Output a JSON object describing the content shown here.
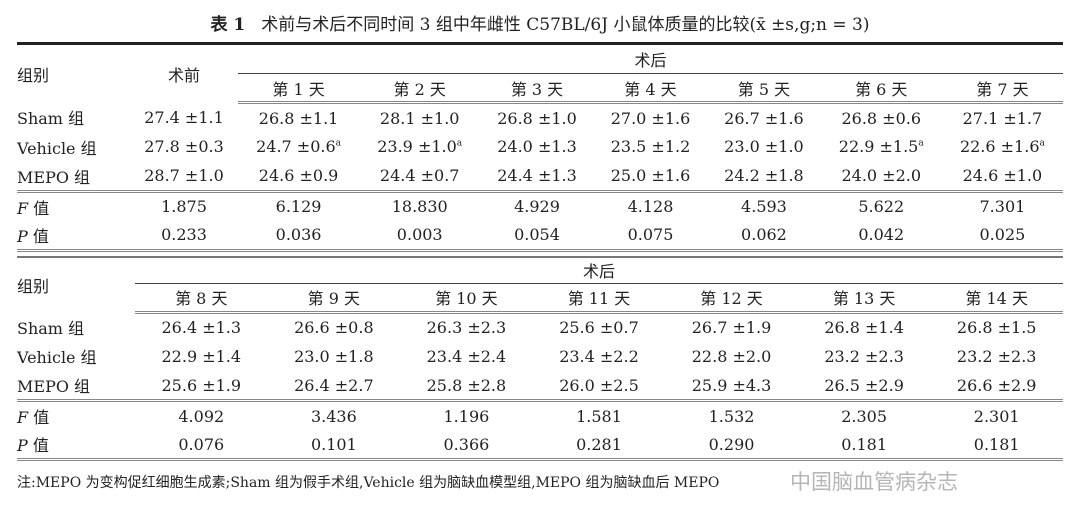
{
  "title": {
    "label": "表 1",
    "text": "术前与术后不同时间 3 组中年雌性 C57BL/6J 小鼠体质量的比较(x̄ ±s,g;n = 3)"
  },
  "table1": {
    "group_header": "组别",
    "pre_header": "术前",
    "post_header": "术后",
    "days": [
      "第 1 天",
      "第 2 天",
      "第 3 天",
      "第 4 天",
      "第 5 天",
      "第 6 天",
      "第 7 天"
    ],
    "rows": [
      {
        "label": "Sham 组",
        "pre": "27.4 ±1.1",
        "values": [
          "26.8 ±1.1",
          "28.1 ±1.0",
          "26.8 ±1.0",
          "27.0 ±1.6",
          "26.7 ±1.6",
          "26.8 ±0.6",
          "27.1 ±1.7"
        ],
        "sup": [
          "",
          "",
          "",
          "",
          "",
          "",
          ""
        ]
      },
      {
        "label": "Vehicle 组",
        "pre": "27.8 ±0.3",
        "values": [
          "24.7 ±0.6",
          "23.9 ±1.0",
          "24.0 ±1.3",
          "23.5 ±1.2",
          "23.0 ±1.0",
          "22.9 ±1.5",
          "22.6 ±1.6"
        ],
        "sup": [
          "a",
          "a",
          "",
          "",
          "",
          "a",
          "a"
        ]
      },
      {
        "label": "MEPO 组",
        "pre": "28.7 ±1.0",
        "values": [
          "24.6 ±0.9",
          "24.4 ±0.7",
          "24.4 ±1.3",
          "25.0 ±1.6",
          "24.2 ±1.8",
          "24.0 ±2.0",
          "24.6 ±1.0"
        ],
        "sup": [
          "",
          "",
          "",
          "",
          "",
          "",
          ""
        ]
      }
    ],
    "f": {
      "label": "F",
      "suffix": "值",
      "pre": "1.875",
      "values": [
        "6.129",
        "18.830",
        "4.929",
        "4.128",
        "4.593",
        "5.622",
        "7.301"
      ]
    },
    "p": {
      "label": "P",
      "suffix": "值",
      "pre": "0.233",
      "values": [
        "0.036",
        "0.003",
        "0.054",
        "0.075",
        "0.062",
        "0.042",
        "0.025"
      ]
    }
  },
  "table2": {
    "group_header": "组别",
    "post_header": "术后",
    "days": [
      "第 8 天",
      "第 9 天",
      "第 10 天",
      "第 11 天",
      "第 12 天",
      "第 13 天",
      "第 14 天"
    ],
    "rows": [
      {
        "label": "Sham 组",
        "values": [
          "26.4 ±1.3",
          "26.6 ±0.8",
          "26.3 ±2.3",
          "25.6 ±0.7",
          "26.7 ±1.9",
          "26.8 ±1.4",
          "26.8 ±1.5"
        ]
      },
      {
        "label": "Vehicle 组",
        "values": [
          "22.9 ±1.4",
          "23.0 ±1.8",
          "23.4 ±2.4",
          "23.4 ±2.2",
          "22.8 ±2.0",
          "23.2 ±2.3",
          "23.2 ±2.3"
        ]
      },
      {
        "label": "MEPO 组",
        "values": [
          "25.6 ±1.9",
          "26.4 ±2.7",
          "25.8 ±2.8",
          "26.0 ±2.5",
          "25.9 ±4.3",
          "26.5 ±2.9",
          "26.6 ±2.9"
        ]
      }
    ],
    "f": {
      "label": "F",
      "suffix": "值",
      "values": [
        "4.092",
        "3.436",
        "1.196",
        "1.581",
        "1.532",
        "2.305",
        "2.301"
      ]
    },
    "p": {
      "label": "P",
      "suffix": "值",
      "values": [
        "0.076",
        "0.101",
        "0.366",
        "0.281",
        "0.290",
        "0.181",
        "0.181"
      ]
    }
  },
  "note": "注:MEPO 为变构促红细胞生成素;Sham 组为假手术组,Vehicle 组为脑缺血模型组,MEPO 组为脑缺血后 MEPO",
  "watermark": "中国脑血管病杂志"
}
